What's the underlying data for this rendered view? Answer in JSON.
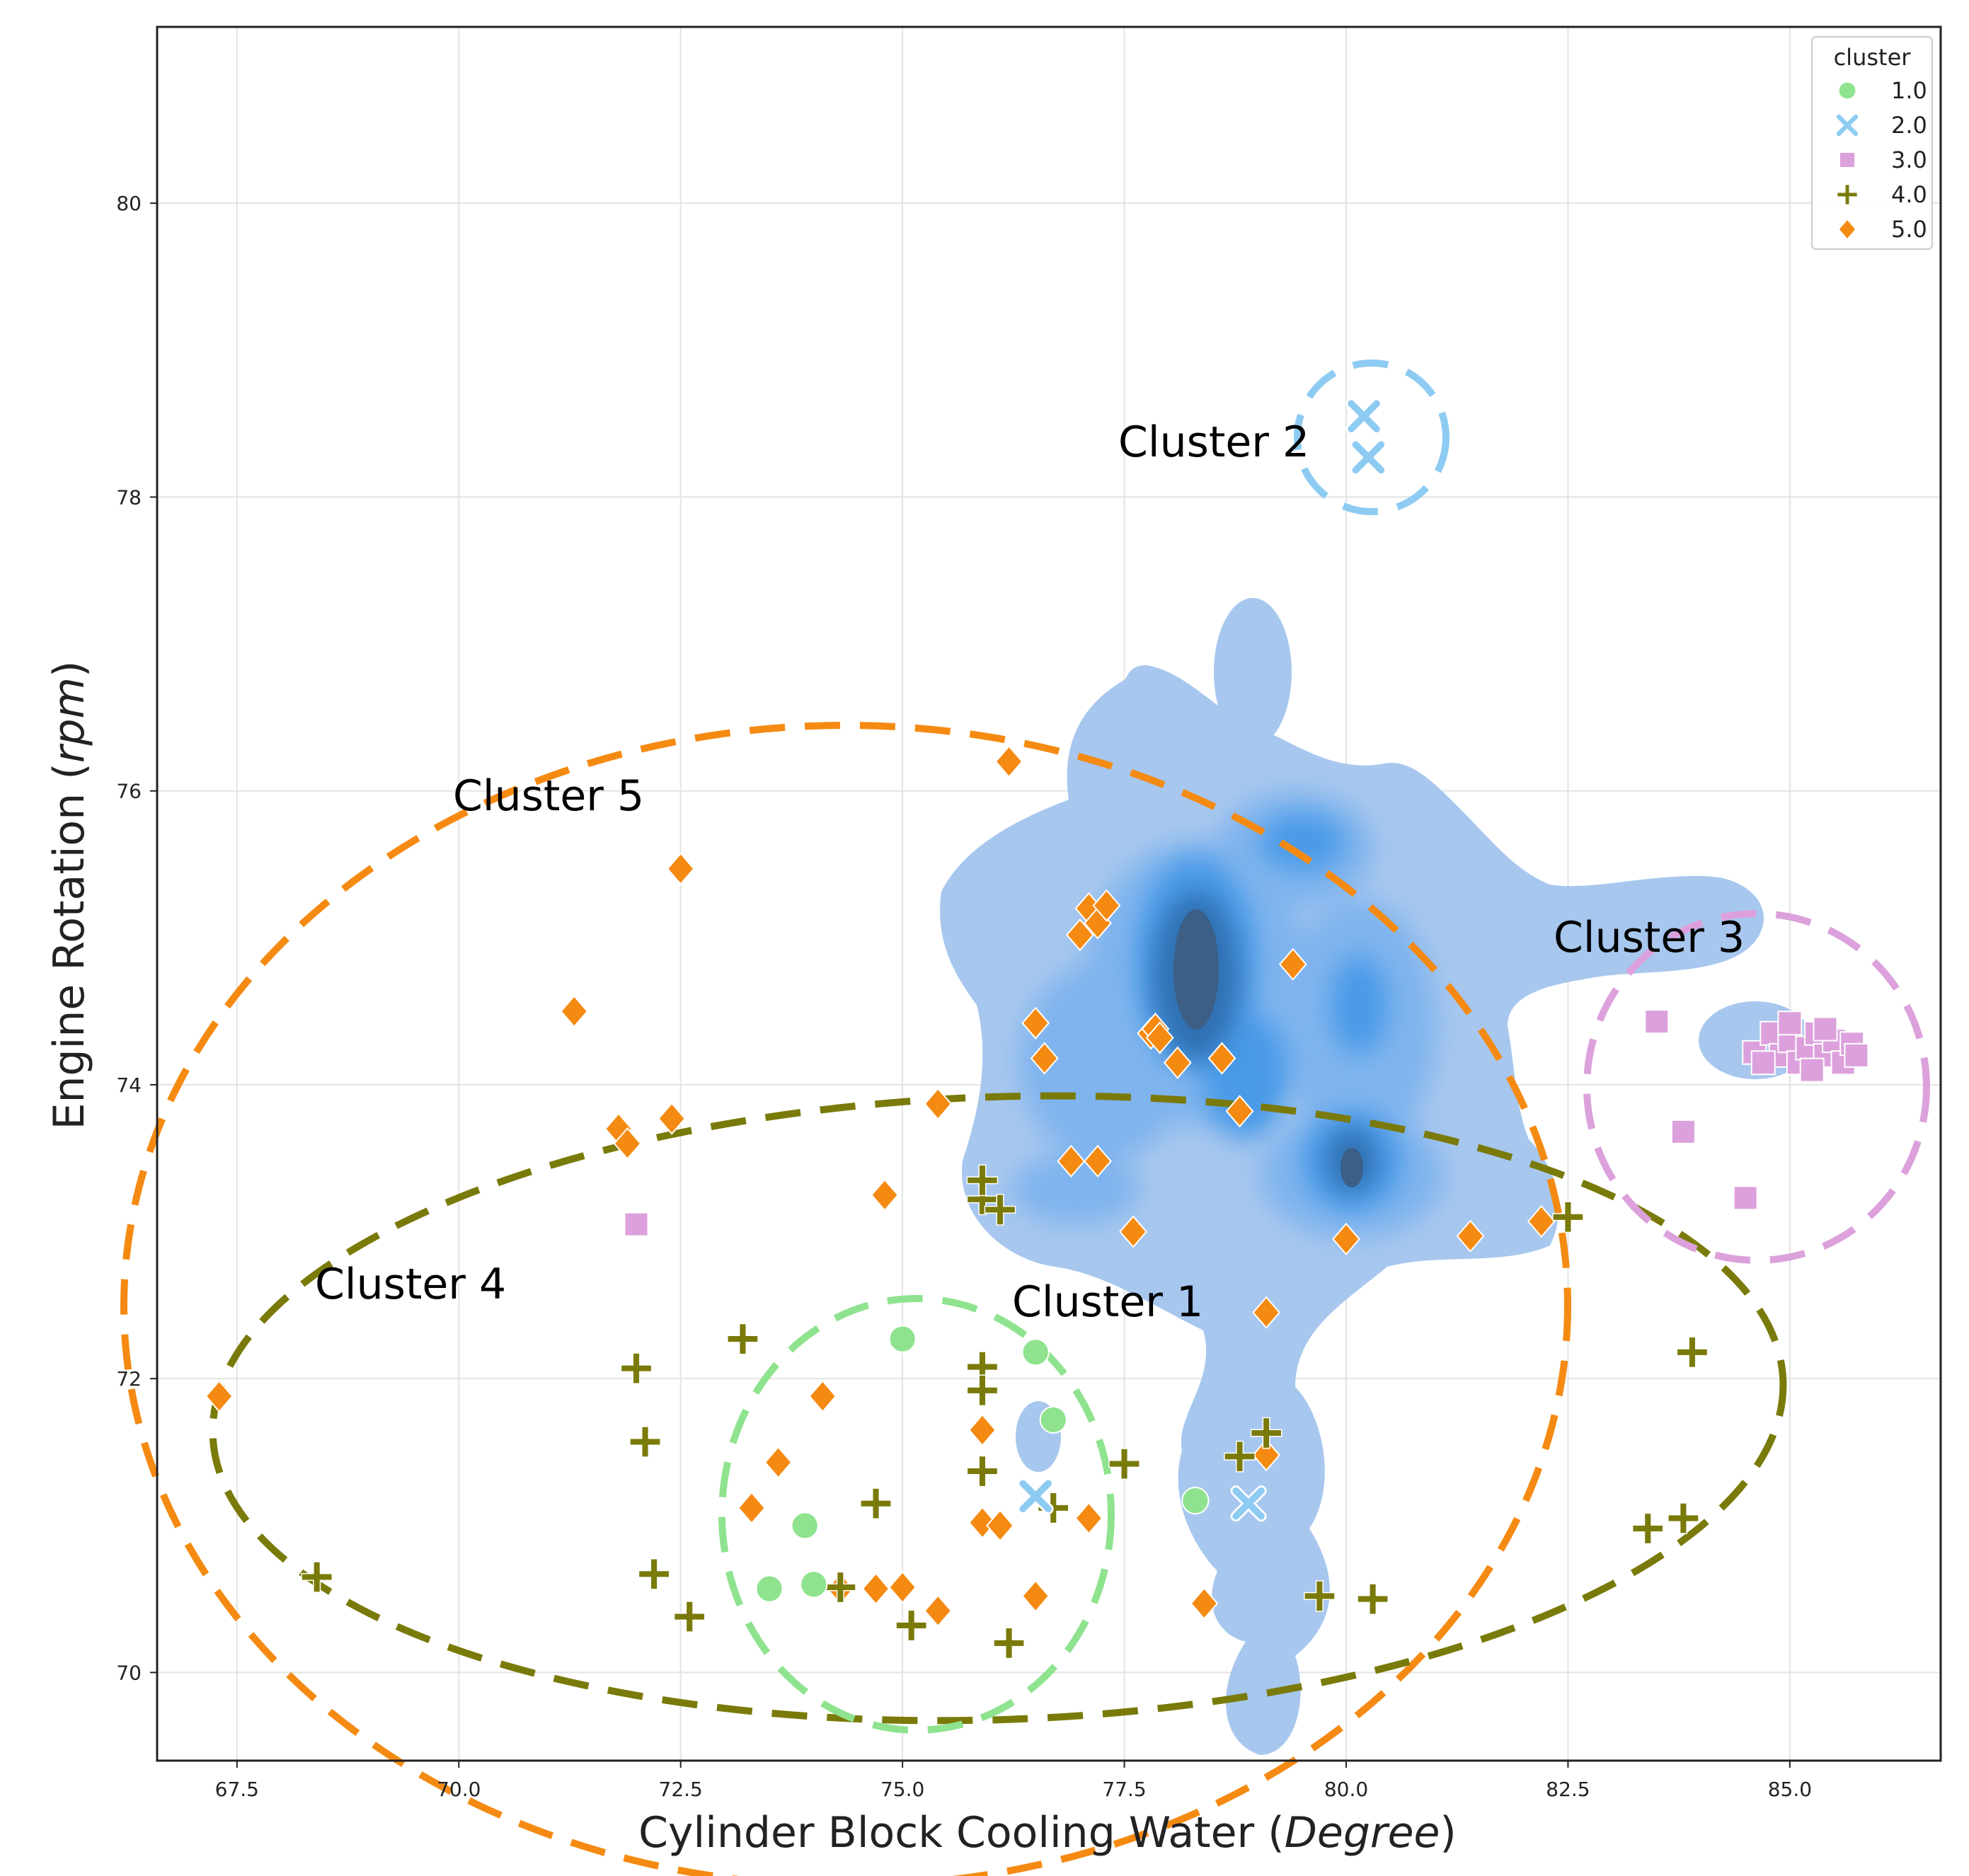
{
  "chart_data": {
    "type": "scatter",
    "xlabel_main": "Cylinder Block Cooling Water (",
    "xlabel_italic": "Degree",
    "xlabel_end": ")",
    "ylabel_main": "Engine Rotation (",
    "ylabel_italic": "rpm",
    "ylabel_end": ")",
    "xlim": [
      66.6,
      86.7
    ],
    "ylim": [
      69.4,
      81.2
    ],
    "xticks": [
      "67.5",
      "70.0",
      "72.5",
      "75.0",
      "77.5",
      "80.0",
      "82.5",
      "85.0"
    ],
    "xtick_values": [
      67.5,
      70.0,
      72.5,
      75.0,
      77.5,
      80.0,
      82.5,
      85.0
    ],
    "yticks": [
      "70",
      "72",
      "74",
      "76",
      "78",
      "80"
    ],
    "ytick_values": [
      70,
      72,
      74,
      76,
      78,
      80
    ],
    "grid": true,
    "legend": {
      "title": "cluster",
      "position": "top-right",
      "entries": [
        "1.0",
        "2.0",
        "3.0",
        "4.0",
        "5.0"
      ]
    },
    "colors": {
      "1.0": "#8fe38f",
      "2.0": "#8ecbf3",
      "3.0": "#dca1dc",
      "4.0": "#7a7a0a",
      "5.0": "#f58a12",
      "kde_light": "#a7c7ee",
      "kde_mid": "#4a9ae8",
      "kde_dark": "#3b5f86"
    },
    "series": [
      {
        "name": "1.0",
        "marker": "circle",
        "points": [
          [
            75.0,
            72.27
          ],
          [
            76.5,
            72.18
          ],
          [
            76.7,
            71.72
          ],
          [
            73.9,
            71.0
          ],
          [
            74.0,
            70.6
          ],
          [
            73.5,
            70.57
          ],
          [
            78.3,
            71.17
          ]
        ]
      },
      {
        "name": "2.0",
        "marker": "x",
        "points": [
          [
            80.2,
            78.55
          ],
          [
            80.25,
            78.27
          ],
          [
            76.5,
            71.2
          ],
          [
            78.9,
            71.15
          ]
        ]
      },
      {
        "name": "3.0",
        "marker": "square",
        "points": [
          [
            83.5,
            74.43
          ],
          [
            83.8,
            73.68
          ],
          [
            84.5,
            73.23
          ],
          [
            72.0,
            73.05
          ],
          [
            84.6,
            74.22
          ],
          [
            84.8,
            74.35
          ],
          [
            84.9,
            74.2
          ],
          [
            85.0,
            74.3
          ],
          [
            85.1,
            74.15
          ],
          [
            85.2,
            74.25
          ],
          [
            85.3,
            74.35
          ],
          [
            85.4,
            74.2
          ],
          [
            85.5,
            74.3
          ],
          [
            85.6,
            74.15
          ],
          [
            85.7,
            74.28
          ],
          [
            85.75,
            74.2
          ],
          [
            85.0,
            74.42
          ],
          [
            85.4,
            74.38
          ],
          [
            85.25,
            74.1
          ],
          [
            84.7,
            74.15
          ]
        ]
      },
      {
        "name": "4.0",
        "marker": "plus",
        "points": [
          [
            72.0,
            72.07
          ],
          [
            73.2,
            72.27
          ],
          [
            72.1,
            71.57
          ],
          [
            75.9,
            72.08
          ],
          [
            75.9,
            71.92
          ],
          [
            75.9,
            71.37
          ],
          [
            74.7,
            71.15
          ],
          [
            76.7,
            71.12
          ],
          [
            77.5,
            71.42
          ],
          [
            78.8,
            71.47
          ],
          [
            79.1,
            71.63
          ],
          [
            72.2,
            70.67
          ],
          [
            72.6,
            70.38
          ],
          [
            74.3,
            70.58
          ],
          [
            75.1,
            70.32
          ],
          [
            76.2,
            70.2
          ],
          [
            68.4,
            70.65
          ],
          [
            79.7,
            70.52
          ],
          [
            80.3,
            70.5
          ],
          [
            83.9,
            72.18
          ],
          [
            83.4,
            70.98
          ],
          [
            83.8,
            71.05
          ],
          [
            82.5,
            73.1
          ],
          [
            75.9,
            73.22
          ],
          [
            76.1,
            73.15
          ],
          [
            75.9,
            73.35
          ]
        ]
      },
      {
        "name": "5.0",
        "marker": "diamond",
        "points": [
          [
            76.2,
            76.2
          ],
          [
            72.5,
            75.47
          ],
          [
            71.3,
            74.5
          ],
          [
            71.8,
            73.7
          ],
          [
            71.9,
            73.6
          ],
          [
            72.4,
            73.77
          ],
          [
            74.8,
            73.25
          ],
          [
            75.4,
            73.87
          ],
          [
            77.1,
            75.2
          ],
          [
            77.2,
            75.1
          ],
          [
            77.3,
            75.22
          ],
          [
            77.0,
            75.02
          ],
          [
            76.5,
            74.42
          ],
          [
            76.6,
            74.18
          ],
          [
            77.8,
            74.35
          ],
          [
            77.85,
            74.38
          ],
          [
            77.9,
            74.32
          ],
          [
            78.1,
            74.15
          ],
          [
            78.6,
            74.18
          ],
          [
            78.8,
            73.82
          ],
          [
            79.4,
            74.82
          ],
          [
            77.2,
            73.48
          ],
          [
            76.9,
            73.48
          ],
          [
            77.6,
            73.0
          ],
          [
            80.0,
            72.95
          ],
          [
            81.4,
            72.97
          ],
          [
            82.2,
            73.07
          ],
          [
            79.1,
            72.45
          ],
          [
            79.1,
            71.48
          ],
          [
            74.1,
            71.88
          ],
          [
            73.6,
            71.43
          ],
          [
            73.3,
            71.12
          ],
          [
            75.9,
            71.65
          ],
          [
            75.9,
            71.02
          ],
          [
            76.1,
            71.0
          ],
          [
            77.1,
            71.05
          ],
          [
            75.4,
            70.42
          ],
          [
            76.5,
            70.52
          ],
          [
            74.3,
            70.57
          ],
          [
            74.7,
            70.57
          ],
          [
            75.0,
            70.58
          ],
          [
            78.4,
            70.47
          ],
          [
            67.3,
            71.88
          ]
        ]
      }
    ],
    "annotations": [
      {
        "text": "Cluster 1"
      },
      {
        "text": "Cluster 2"
      },
      {
        "text": "Cluster 3"
      },
      {
        "text": "Cluster 4"
      },
      {
        "text": "Cluster 5"
      }
    ]
  }
}
